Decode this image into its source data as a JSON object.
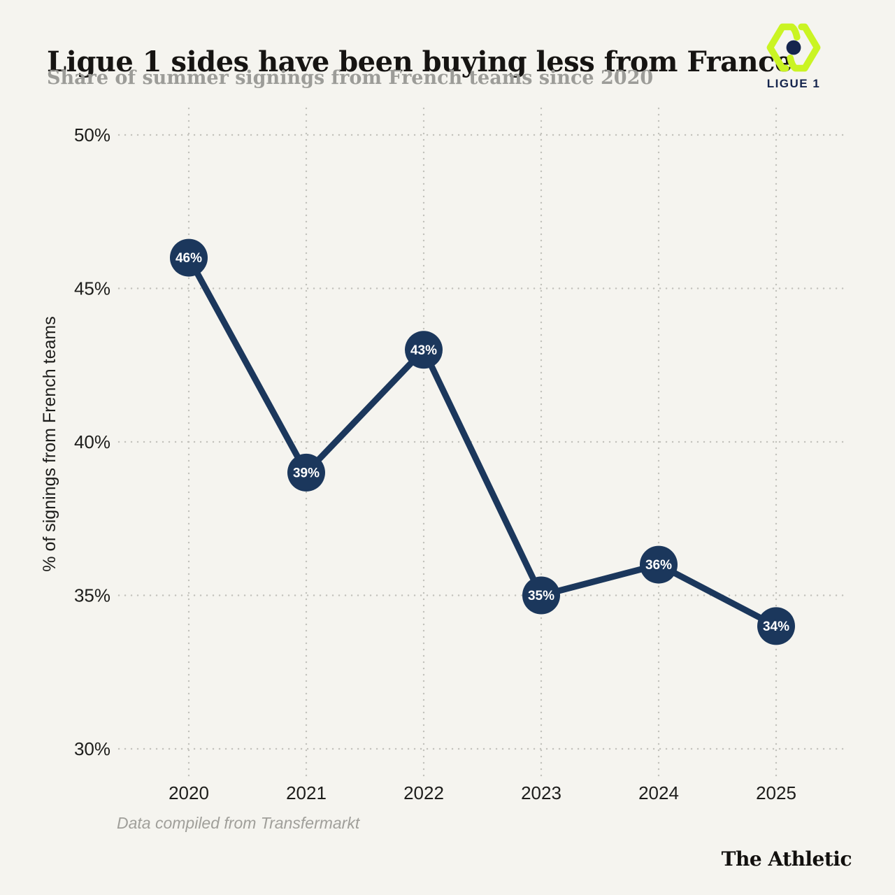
{
  "header": {
    "title": "Ligue 1 sides have been buying less from France",
    "subtitle": "Share of summer signings from French teams since 2020"
  },
  "logo": {
    "label": "LIGUE 1"
  },
  "chart_data": {
    "type": "line",
    "title": "Ligue 1 sides have been buying less from France",
    "subtitle": "Share of summer signings from French teams since 2020",
    "categories": [
      "2020",
      "2021",
      "2022",
      "2023",
      "2024",
      "2025"
    ],
    "values": [
      46,
      39,
      43,
      35,
      36,
      34
    ],
    "point_labels": [
      "46%",
      "39%",
      "43%",
      "35%",
      "36%",
      "34%"
    ],
    "xlabel": "",
    "ylabel": "% of signings from French teams",
    "ylim": [
      30,
      50
    ],
    "yticks": [
      50,
      45,
      40,
      35,
      30
    ],
    "ytick_labels": [
      "50%",
      "45%",
      "40%",
      "35%",
      "30%"
    ],
    "grid": "dotted, horizontal and vertical",
    "legend": "none",
    "marker": "filled circle with white percentage label"
  },
  "footer": {
    "source_note": "Data compiled from Transfermarkt",
    "brand": "The Athletic"
  },
  "colors": {
    "background": "#F5F4EF",
    "title_text": "#161412",
    "subtitle_text": "#9C9C98",
    "axis_text": "#1D1D1B",
    "grid_dots": "#C2C1BB",
    "line": "#1B375C",
    "point_fill": "#1B375C",
    "point_label": "#FFFFFF",
    "source_text": "#A09F9A",
    "brand_text": "#12100E",
    "logo_lime": "#CAF423",
    "logo_navy": "#15254D"
  }
}
